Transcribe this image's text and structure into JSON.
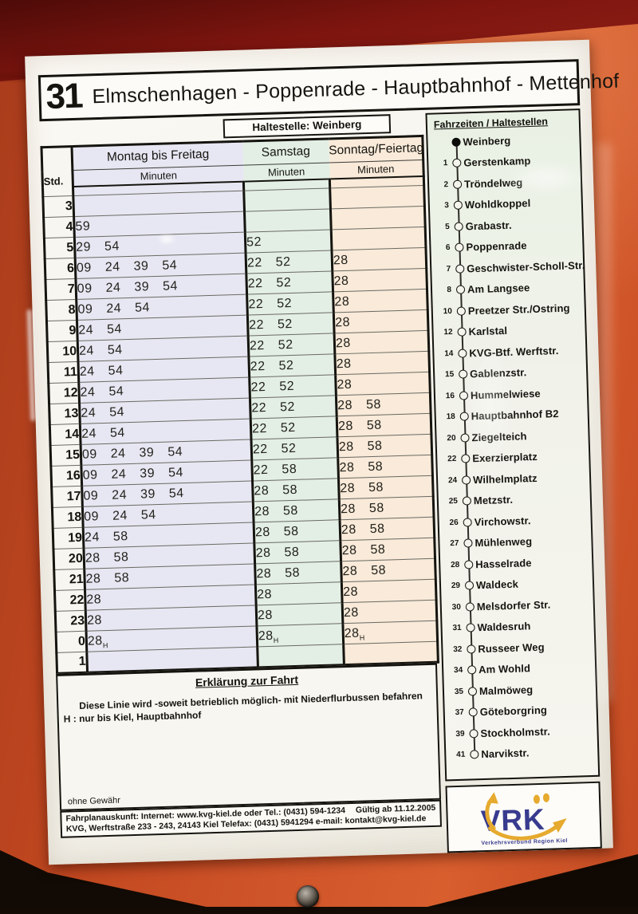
{
  "title": {
    "line_number": "31",
    "route": "Elmschenhagen - Poppenrade - Hauptbahnhof - Mettenhof"
  },
  "stop_label": "Haltestelle: Weinberg",
  "timetable": {
    "col_hour": "Std.",
    "columns": [
      {
        "label": "Montag bis Freitag",
        "sub": "Minuten"
      },
      {
        "label": "Samstag",
        "sub": "Minuten"
      },
      {
        "label": "Sonntag/Feiertag",
        "sub": "Minuten"
      }
    ],
    "rows": [
      {
        "h": "3",
        "mf": [],
        "sa": [],
        "su": []
      },
      {
        "h": "4",
        "mf": [
          "59"
        ],
        "sa": [],
        "su": []
      },
      {
        "h": "5",
        "mf": [
          "29",
          "54"
        ],
        "sa": [
          "52"
        ],
        "su": []
      },
      {
        "h": "6",
        "mf": [
          "09",
          "24",
          "39",
          "54"
        ],
        "sa": [
          "22",
          "52"
        ],
        "su": [
          "28"
        ]
      },
      {
        "h": "7",
        "mf": [
          "09",
          "24",
          "39",
          "54"
        ],
        "sa": [
          "22",
          "52"
        ],
        "su": [
          "28"
        ]
      },
      {
        "h": "8",
        "mf": [
          "09",
          "24",
          "54"
        ],
        "sa": [
          "22",
          "52"
        ],
        "su": [
          "28"
        ]
      },
      {
        "h": "9",
        "mf": [
          "24",
          "54"
        ],
        "sa": [
          "22",
          "52"
        ],
        "su": [
          "28"
        ]
      },
      {
        "h": "10",
        "mf": [
          "24",
          "54"
        ],
        "sa": [
          "22",
          "52"
        ],
        "su": [
          "28"
        ]
      },
      {
        "h": "11",
        "mf": [
          "24",
          "54"
        ],
        "sa": [
          "22",
          "52"
        ],
        "su": [
          "28"
        ]
      },
      {
        "h": "12",
        "mf": [
          "24",
          "54"
        ],
        "sa": [
          "22",
          "52"
        ],
        "su": [
          "28"
        ]
      },
      {
        "h": "13",
        "mf": [
          "24",
          "54"
        ],
        "sa": [
          "22",
          "52"
        ],
        "su": [
          "28",
          "58"
        ]
      },
      {
        "h": "14",
        "mf": [
          "24",
          "54"
        ],
        "sa": [
          "22",
          "52"
        ],
        "su": [
          "28",
          "58"
        ]
      },
      {
        "h": "15",
        "mf": [
          "09",
          "24",
          "39",
          "54"
        ],
        "sa": [
          "22",
          "52"
        ],
        "su": [
          "28",
          "58"
        ]
      },
      {
        "h": "16",
        "mf": [
          "09",
          "24",
          "39",
          "54"
        ],
        "sa": [
          "22",
          "58"
        ],
        "su": [
          "28",
          "58"
        ]
      },
      {
        "h": "17",
        "mf": [
          "09",
          "24",
          "39",
          "54"
        ],
        "sa": [
          "28",
          "58"
        ],
        "su": [
          "28",
          "58"
        ]
      },
      {
        "h": "18",
        "mf": [
          "09",
          "24",
          "54"
        ],
        "sa": [
          "28",
          "58"
        ],
        "su": [
          "28",
          "58"
        ]
      },
      {
        "h": "19",
        "mf": [
          "24",
          "58"
        ],
        "sa": [
          "28",
          "58"
        ],
        "su": [
          "28",
          "58"
        ]
      },
      {
        "h": "20",
        "mf": [
          "28",
          "58"
        ],
        "sa": [
          "28",
          "58"
        ],
        "su": [
          "28",
          "58"
        ]
      },
      {
        "h": "21",
        "mf": [
          "28",
          "58"
        ],
        "sa": [
          "28",
          "58"
        ],
        "su": [
          "28",
          "58"
        ]
      },
      {
        "h": "22",
        "mf": [
          "28"
        ],
        "sa": [
          "28"
        ],
        "su": [
          "28"
        ]
      },
      {
        "h": "23",
        "mf": [
          "28"
        ],
        "sa": [
          "28"
        ],
        "su": [
          "28"
        ]
      },
      {
        "h": "0",
        "mf": [
          "28*H"
        ],
        "sa": [
          "28*H"
        ],
        "su": [
          "28*H"
        ]
      },
      {
        "h": "1",
        "mf": [],
        "sa": [],
        "su": []
      }
    ]
  },
  "notes": {
    "heading": "Erklärung zur Fahrt",
    "line1": "Diese Linie wird -soweit betrieblich möglich- mit Niederflurbussen befahren",
    "line2": "H : nur bis Kiel, Hauptbahnhof"
  },
  "footer": {
    "disclaimer": "ohne Gewähr",
    "valid": "Gültig ab 11.12.2005",
    "info_line": "Fahrplanauskunft: Internet: www.kvg-kiel.de oder Tel.: (0431) 594-1234",
    "address_line": "KVG, Werftstraße 233 - 243, 24143 Kiel  Telefax: (0431) 5941294  e-mail: kontakt@kvg-kiel.de"
  },
  "stops_panel": {
    "heading": "Fahrzeiten / Haltestellen",
    "stops": [
      {
        "num": "",
        "name": "Weinberg",
        "current": true
      },
      {
        "num": "1",
        "name": "Gerstenkamp"
      },
      {
        "num": "2",
        "name": "Tröndelweg"
      },
      {
        "num": "3",
        "name": "Wohldkoppel"
      },
      {
        "num": "5",
        "name": "Grabastr."
      },
      {
        "num": "6",
        "name": "Poppenrade"
      },
      {
        "num": "7",
        "name": "Geschwister-Scholl-Str."
      },
      {
        "num": "8",
        "name": "Am Langsee"
      },
      {
        "num": "10",
        "name": "Preetzer Str./Ostring"
      },
      {
        "num": "12",
        "name": "Karlstal"
      },
      {
        "num": "14",
        "name": "KVG-Btf. Werftstr."
      },
      {
        "num": "15",
        "name": "Gablenzstr."
      },
      {
        "num": "16",
        "name": "Hummelwiese"
      },
      {
        "num": "18",
        "name": "Hauptbahnhof B2"
      },
      {
        "num": "20",
        "name": "Ziegelteich"
      },
      {
        "num": "22",
        "name": "Exerzierplatz"
      },
      {
        "num": "24",
        "name": "Wilhelmplatz"
      },
      {
        "num": "25",
        "name": "Metzstr."
      },
      {
        "num": "26",
        "name": "Virchowstr."
      },
      {
        "num": "27",
        "name": "Mühlenweg"
      },
      {
        "num": "28",
        "name": "Hasselrade"
      },
      {
        "num": "29",
        "name": "Waldeck"
      },
      {
        "num": "30",
        "name": "Melsdorfer Str."
      },
      {
        "num": "31",
        "name": "Waldesruh"
      },
      {
        "num": "32",
        "name": "Russeer Weg"
      },
      {
        "num": "34",
        "name": "Am Wohld"
      },
      {
        "num": "35",
        "name": "Malmöweg"
      },
      {
        "num": "37",
        "name": "Göteborgring"
      },
      {
        "num": "39",
        "name": "Stockholmstr."
      },
      {
        "num": "41",
        "name": "Narvikstr."
      }
    ]
  },
  "logo": {
    "text": "VRK",
    "subtext": "Verkehrsverbund Region Kiel"
  },
  "colors": {
    "frame_orange": "#c84a22",
    "frame_dark_top": "#7e150f",
    "weekday_tint": "#e7e7f3",
    "saturday_tint": "#e3efe5",
    "sunday_tint": "#f9ead9",
    "logo_blue": "#383b8e",
    "logo_yellow": "#e6aa2e"
  }
}
